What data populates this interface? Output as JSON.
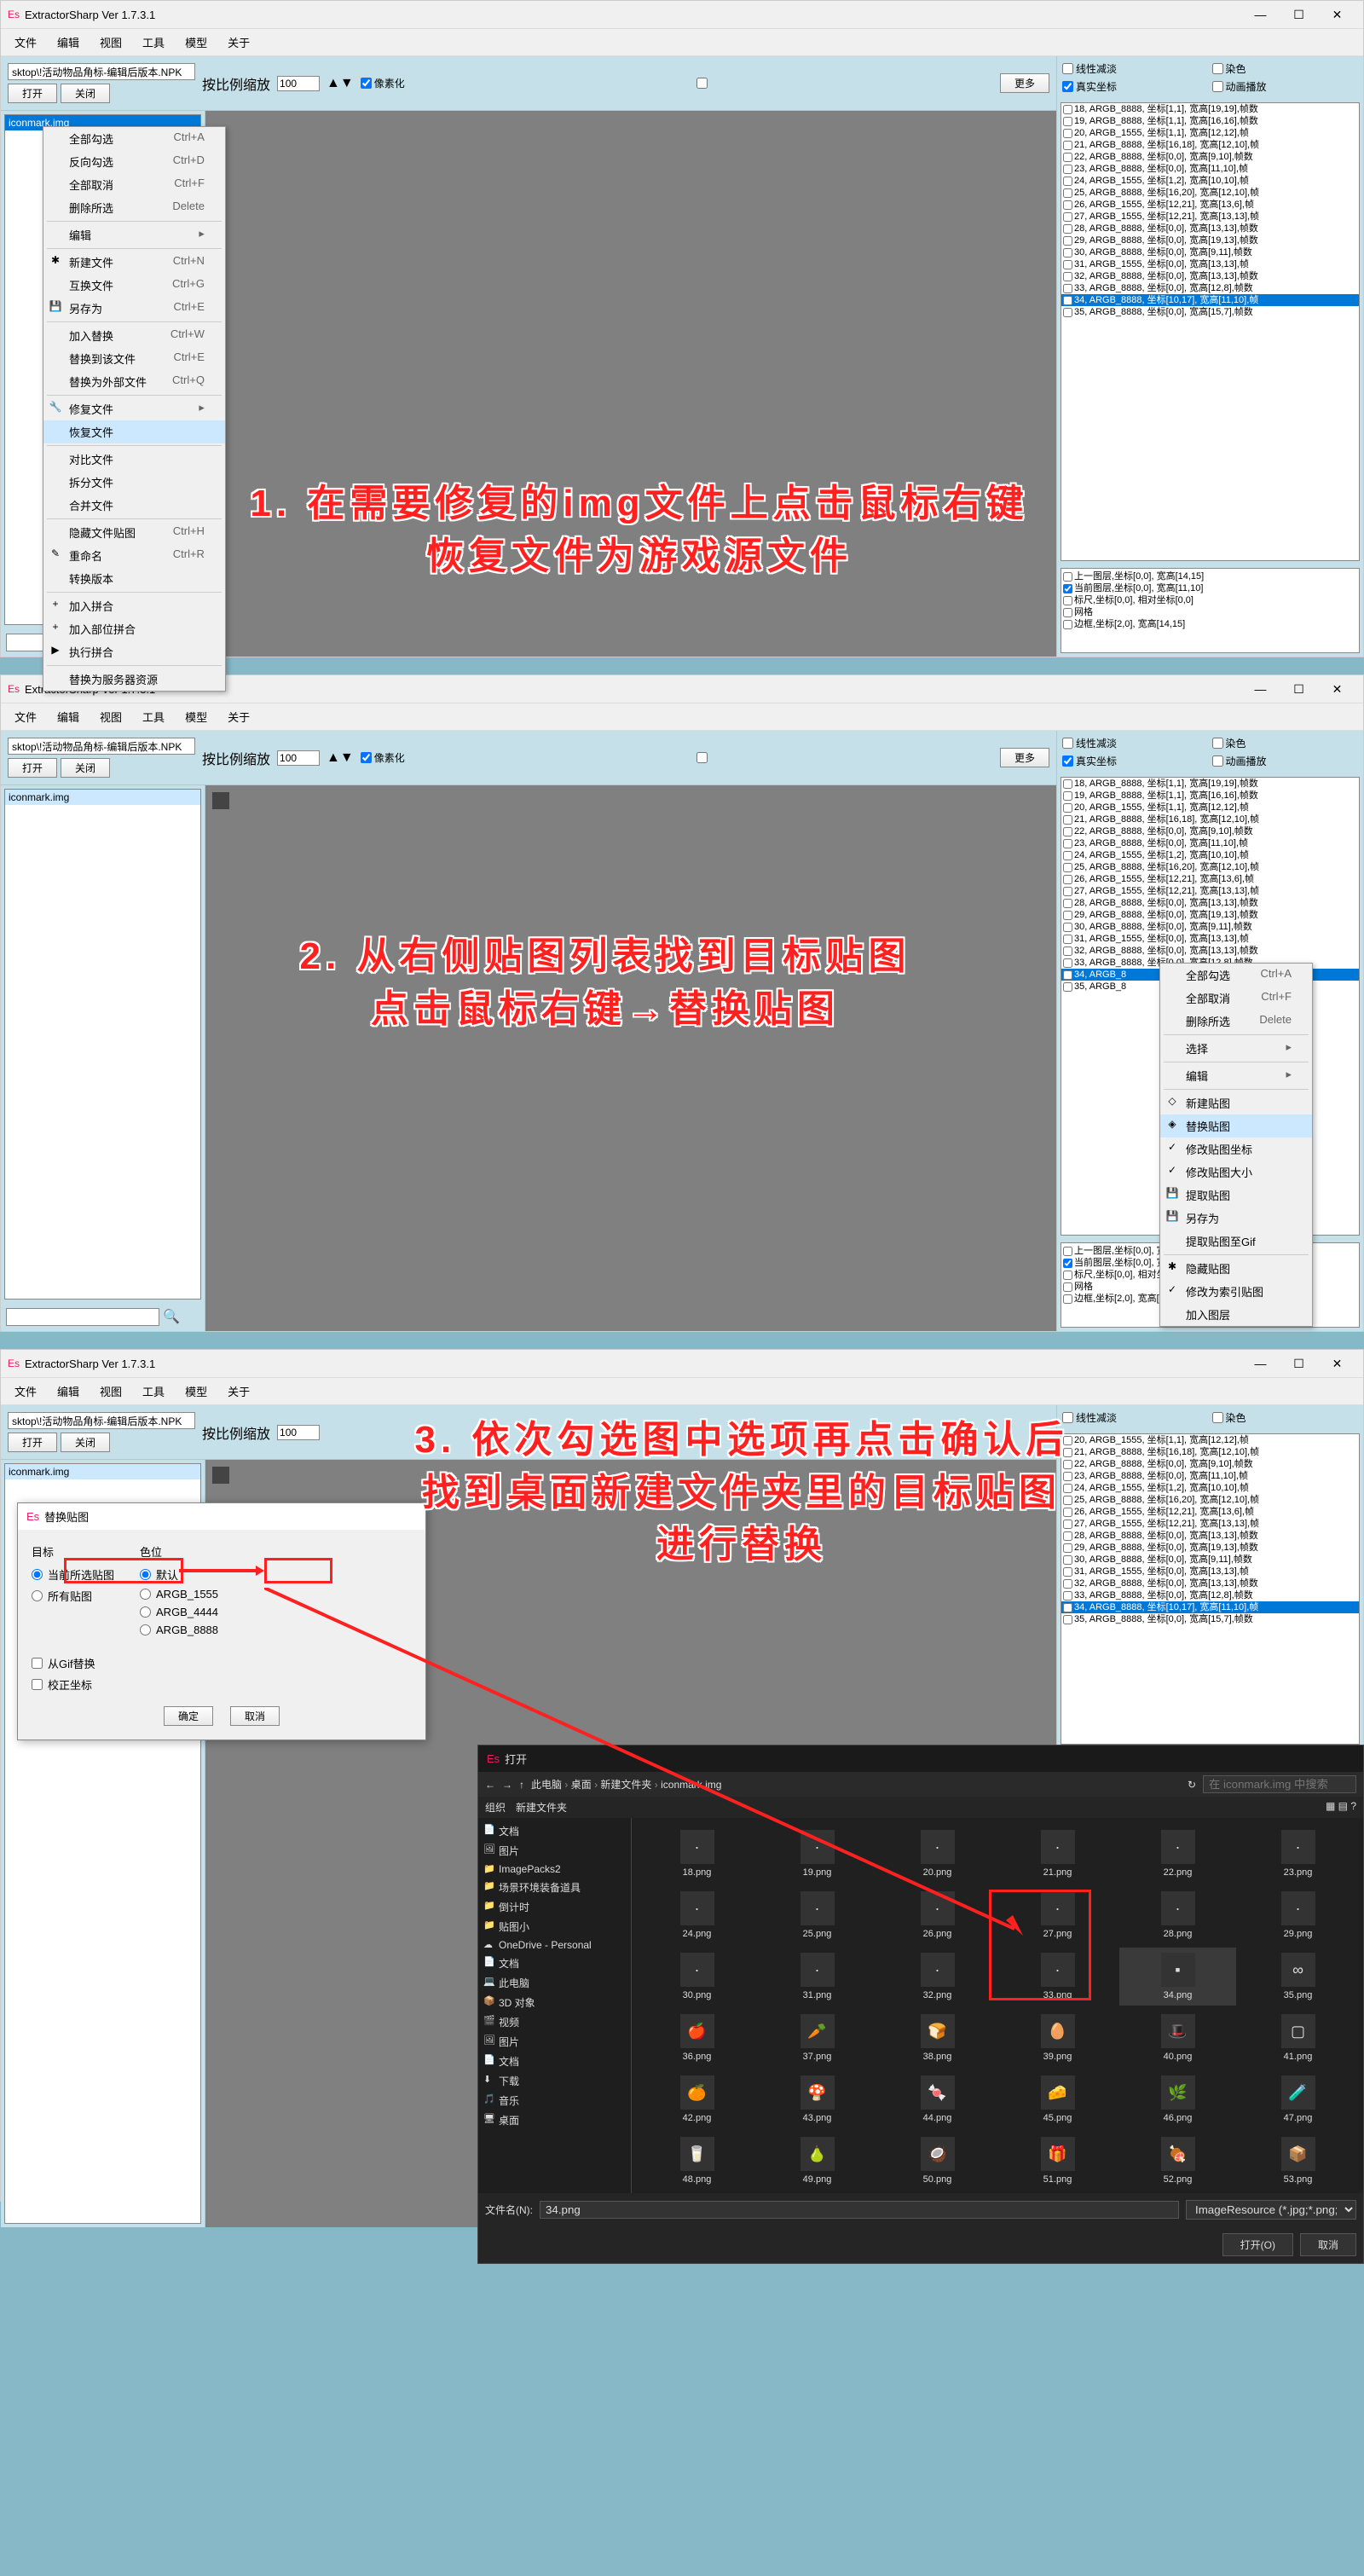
{
  "app": {
    "title": "ExtractorSharp Ver 1.7.3.1",
    "icon": "Es"
  },
  "menus": [
    "文件",
    "编辑",
    "视图",
    "工具",
    "模型",
    "关于"
  ],
  "toolbar": {
    "path": "sktop\\!活动物品角标-编辑后版本.NPK",
    "open": "打开",
    "close": "关闭",
    "scale_label": "按比例缩放",
    "scale_val": "100",
    "pixelize": "像素化",
    "more": "更多"
  },
  "right_opts": {
    "linear": "线性减淡",
    "dye": "染色",
    "real": "真实坐标",
    "anim": "动画播放"
  },
  "filelist_item": "iconmark.img",
  "img_items": [
    "18, ARGB_8888, 坐标[1,1], 宽高[19,19],帧数",
    "19, ARGB_8888, 坐标[1,1], 宽高[16,16],帧数",
    "20, ARGB_1555, 坐标[1,1], 宽高[12,12],帧",
    "21, ARGB_8888, 坐标[16,18], 宽高[12,10],帧",
    "22, ARGB_8888, 坐标[0,0], 宽高[9,10],帧数",
    "23, ARGB_8888, 坐标[0,0], 宽高[11,10],帧",
    "24, ARGB_1555, 坐标[1,2], 宽高[10,10],帧",
    "25, ARGB_8888, 坐标[16,20], 宽高[12,10],帧",
    "26, ARGB_1555, 坐标[12,21], 宽高[13,6],帧",
    "27, ARGB_1555, 坐标[12,21], 宽高[13,13],帧",
    "28, ARGB_8888, 坐标[0,0], 宽高[13,13],帧数",
    "29, ARGB_8888, 坐标[0,0], 宽高[19,13],帧数",
    "30, ARGB_8888, 坐标[0,0], 宽高[9,11],帧数",
    "31, ARGB_1555, 坐标[0,0], 宽高[13,13],帧",
    "32, ARGB_8888, 坐标[0,0], 宽高[13,13],帧数",
    "33, ARGB_8888, 坐标[0,0], 宽高[12,8],帧数",
    "34, ARGB_8888, 坐标[10,17], 宽高[11,10],帧",
    "35, ARGB_8888, 坐标[0,0], 宽高[15,7],帧数"
  ],
  "img_selected_idx": 16,
  "info_items": [
    "上一图层,坐标[0,0], 宽高[14,15]",
    "当前图层,坐标[0,0], 宽高[11,10]",
    "标尺,坐标[0,0], 相对坐标[0,0]",
    "网格",
    "边框,坐标[2,0], 宽高[14,15]"
  ],
  "ctx1": {
    "items": [
      {
        "l": "全部勾选",
        "s": "Ctrl+A"
      },
      {
        "l": "反向勾选",
        "s": "Ctrl+D"
      },
      {
        "l": "全部取消",
        "s": "Ctrl+F"
      },
      {
        "l": "删除所选",
        "s": "Delete"
      },
      {
        "sep": true
      },
      {
        "l": "编辑",
        "arrow": true
      },
      {
        "sep": true
      },
      {
        "l": "新建文件",
        "s": "Ctrl+N",
        "i": "✱"
      },
      {
        "l": "互换文件",
        "s": "Ctrl+G"
      },
      {
        "l": "另存为",
        "s": "Ctrl+E",
        "i": "💾"
      },
      {
        "sep": true
      },
      {
        "l": "加入替换",
        "s": "Ctrl+W"
      },
      {
        "l": "替换到该文件",
        "s": "Ctrl+E"
      },
      {
        "l": "替换为外部文件",
        "s": "Ctrl+Q"
      },
      {
        "sep": true
      },
      {
        "l": "修复文件",
        "arrow": true,
        "i": "🔧"
      },
      {
        "l": "恢复文件",
        "hl": true
      },
      {
        "sep": true
      },
      {
        "l": "对比文件"
      },
      {
        "l": "拆分文件"
      },
      {
        "l": "合并文件"
      },
      {
        "sep": true
      },
      {
        "l": "隐藏文件贴图",
        "s": "Ctrl+H"
      },
      {
        "l": "重命名",
        "s": "Ctrl+R",
        "i": "✎"
      },
      {
        "l": "转换版本"
      },
      {
        "sep": true
      },
      {
        "l": "加入拼合",
        "i": "+"
      },
      {
        "l": "加入部位拼合",
        "i": "+"
      },
      {
        "l": "执行拼合",
        "i": "▶"
      },
      {
        "sep": true
      },
      {
        "l": "替换为服务器资源"
      }
    ]
  },
  "ctx2": {
    "items": [
      {
        "l": "全部勾选",
        "s": "Ctrl+A"
      },
      {
        "l": "全部取消",
        "s": "Ctrl+F"
      },
      {
        "l": "删除所选",
        "s": "Delete"
      },
      {
        "sep": true
      },
      {
        "l": "选择",
        "arrow": true
      },
      {
        "sep": true
      },
      {
        "l": "编辑",
        "arrow": true
      },
      {
        "sep": true
      },
      {
        "l": "新建贴图",
        "i": "◇"
      },
      {
        "l": "替换贴图",
        "hl": true,
        "i": "◈"
      },
      {
        "l": "修改贴图坐标",
        "i": "✓"
      },
      {
        "l": "修改贴图大小",
        "i": "✓"
      },
      {
        "l": "提取贴图",
        "i": "💾"
      },
      {
        "l": "另存为",
        "i": "💾"
      },
      {
        "l": "提取贴图至Gif"
      },
      {
        "sep": true
      },
      {
        "l": "隐藏贴图",
        "i": "✱"
      },
      {
        "l": "修改为索引贴图",
        "i": "✓"
      },
      {
        "l": "加入图层"
      }
    ]
  },
  "ann1": "1. 在需要修复的img文件上点击鼠标右键\n恢复文件为游戏源文件",
  "ann2": "2. 从右侧贴图列表找到目标贴图\n点击鼠标右键→替换贴图",
  "ann3": "3. 依次勾选图中选项再点击确认后\n找到桌面新建文件夹里的目标贴图\n进行替换",
  "dlg": {
    "title": "替换贴图",
    "target": "目标",
    "colordepth": "色位",
    "cur": "当前所选贴图",
    "all": "所有贴图",
    "default": "默认",
    "a1555": "ARGB_1555",
    "a4444": "ARGB_4444",
    "a8888": "ARGB_8888",
    "gif": "从Gif替换",
    "fixcoord": "校正坐标",
    "ok": "确定",
    "cancel": "取消"
  },
  "fo": {
    "title": "打开",
    "crumbs": [
      "此电脑",
      "桌面",
      "新建文件夹",
      "iconmark.img"
    ],
    "search_ph": "在 iconmark.img 中搜索",
    "org": "组织",
    "newf": "新建文件夹",
    "side": [
      {
        "l": "文档",
        "i": "📄"
      },
      {
        "l": "图片",
        "i": "🖼"
      },
      {
        "l": "ImagePacks2",
        "i": "📁"
      },
      {
        "l": "场景环境装备道具",
        "i": "📁"
      },
      {
        "l": "倒计时",
        "i": "📁"
      },
      {
        "l": "贴图小",
        "i": "📁"
      },
      {
        "l": "OneDrive - Personal",
        "i": "☁"
      },
      {
        "l": "文档",
        "i": "📄"
      },
      {
        "l": "此电脑",
        "i": "💻"
      },
      {
        "l": "3D 对象",
        "i": "📦"
      },
      {
        "l": "视频",
        "i": "🎬"
      },
      {
        "l": "图片",
        "i": "🖼"
      },
      {
        "l": "文档",
        "i": "📄"
      },
      {
        "l": "下载",
        "i": "⬇"
      },
      {
        "l": "音乐",
        "i": "🎵"
      },
      {
        "l": "桌面",
        "i": "🖥"
      }
    ],
    "files": [
      "18.png",
      "19.png",
      "20.png",
      "21.png",
      "22.png",
      "23.png",
      "24.png",
      "25.png",
      "26.png",
      "27.png",
      "28.png",
      "29.png",
      "30.png",
      "31.png",
      "32.png",
      "33.png",
      "34.png",
      "35.png",
      "36.png",
      "37.png",
      "38.png",
      "39.png",
      "40.png",
      "41.png",
      "42.png",
      "43.png",
      "44.png",
      "45.png",
      "46.png",
      "47.png",
      "48.png",
      "49.png",
      "50.png",
      "51.png",
      "52.png",
      "53.png"
    ],
    "fname_lbl": "文件名(N):",
    "fname": "34.png",
    "filter": "ImageResource (*.jpg;*.png;*",
    "open": "打开(O)",
    "cancel": "取消"
  }
}
